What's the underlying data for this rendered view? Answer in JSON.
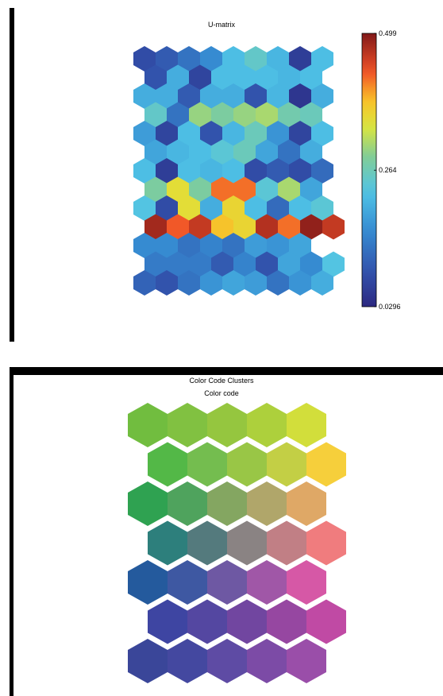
{
  "chart_data": [
    {
      "type": "heatmap",
      "subtype": "hexagonal-som",
      "title": "U-matrix",
      "rows": 13,
      "cols": 9,
      "colorbar": {
        "min": 0.0296,
        "max": 0.499,
        "ticks": [
          "0.499",
          "0.264",
          "0.0296"
        ],
        "tick_values": [
          0.499,
          0.264,
          0.0296
        ],
        "colormap": "jet"
      },
      "values": [
        [
          0.08,
          0.1,
          0.13,
          0.16,
          0.22,
          0.25,
          0.21,
          0.06,
          0.22
        ],
        [
          0.09,
          0.2,
          0.07,
          0.22,
          0.22,
          0.22,
          0.21,
          0.22,
          null
        ],
        [
          0.2,
          0.2,
          0.1,
          0.2,
          0.2,
          0.09,
          0.21,
          0.05,
          0.2
        ],
        [
          0.25,
          0.13,
          0.3,
          0.28,
          0.3,
          0.31,
          0.27,
          0.26,
          null
        ],
        [
          0.18,
          0.07,
          0.22,
          0.09,
          0.21,
          0.26,
          0.17,
          0.07,
          0.22
        ],
        [
          0.19,
          0.21,
          0.22,
          0.24,
          0.26,
          0.19,
          0.13,
          0.2,
          null
        ],
        [
          0.22,
          0.06,
          0.22,
          0.21,
          0.22,
          0.08,
          0.1,
          0.08,
          0.12
        ],
        [
          0.28,
          0.35,
          0.28,
          0.42,
          0.42,
          0.24,
          0.31,
          0.19,
          null
        ],
        [
          0.23,
          0.08,
          0.35,
          0.2,
          0.36,
          0.22,
          0.12,
          0.22,
          0.24
        ],
        [
          0.48,
          0.43,
          0.46,
          0.38,
          0.36,
          0.47,
          0.42,
          0.49,
          0.46
        ],
        [
          0.16,
          0.16,
          0.13,
          0.15,
          0.13,
          0.18,
          0.17,
          0.19,
          null
        ],
        [
          0.14,
          0.14,
          0.14,
          0.1,
          0.15,
          0.09,
          0.19,
          0.16,
          0.23
        ],
        [
          0.11,
          0.09,
          0.13,
          0.17,
          0.19,
          0.18,
          0.13,
          0.17,
          0.2
        ]
      ]
    },
    {
      "type": "heatmap",
      "subtype": "hexagonal-som",
      "title": "Color Code Clusters",
      "subtitle": "Color code",
      "rows": 7,
      "cols": 5,
      "colors": [
        [
          "#71bd3f",
          "#81c141",
          "#95c63f",
          "#add03c",
          "#d2de3b"
        ],
        [
          "#53b847",
          "#74bd4f",
          "#99c646",
          "#c3cf45",
          "#f6cf3b"
        ],
        [
          "#2fa251",
          "#4fa35d",
          "#84a661",
          "#b0a66a",
          "#dfa866"
        ],
        [
          "#2d7f7c",
          "#547a7d",
          "#8a8383",
          "#c17f85",
          "#f07c7e"
        ],
        [
          "#245a9d",
          "#3e58a2",
          "#6e58a3",
          "#a057a7",
          "#d658a6"
        ],
        [
          "#3e45a2",
          "#5447a1",
          "#7146a0",
          "#9647a1",
          "#c04aa4"
        ],
        [
          "#3a4699",
          "#4448a0",
          "#5e4ba4",
          "#7c4ba6",
          "#9a4ea9"
        ]
      ]
    }
  ]
}
